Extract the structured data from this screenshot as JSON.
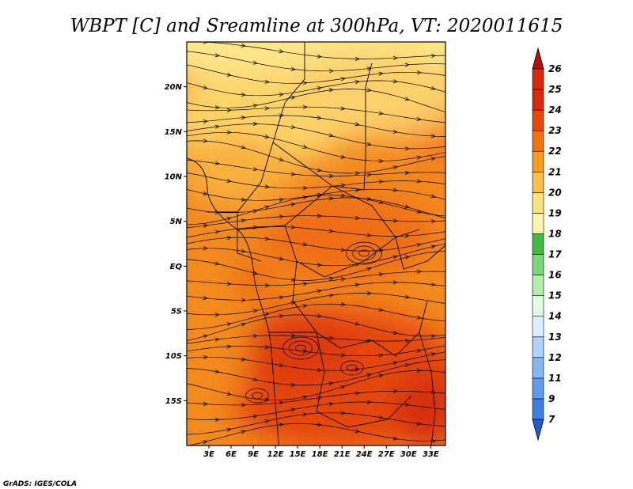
{
  "title": "WBPT [C] and Sreamline at 300hPa, VT: 2020011615",
  "credit": "GrADS: IGES/COLA",
  "map": {
    "lon_range": [
      0,
      35
    ],
    "lat_range": [
      -20,
      25
    ],
    "lon_ticks": [
      {
        "value": 3,
        "label": "3E"
      },
      {
        "value": 6,
        "label": "6E"
      },
      {
        "value": 9,
        "label": "9E"
      },
      {
        "value": 12,
        "label": "12E"
      },
      {
        "value": 15,
        "label": "15E"
      },
      {
        "value": 18,
        "label": "18E"
      },
      {
        "value": 21,
        "label": "21E"
      },
      {
        "value": 24,
        "label": "24E"
      },
      {
        "value": 27,
        "label": "27E"
      },
      {
        "value": 30,
        "label": "30E"
      },
      {
        "value": 33,
        "label": "33E"
      }
    ],
    "lat_ticks": [
      {
        "value": 20,
        "label": "20N"
      },
      {
        "value": 15,
        "label": "15N"
      },
      {
        "value": 10,
        "label": "10N"
      },
      {
        "value": 5,
        "label": "5N"
      },
      {
        "value": 0,
        "label": "EQ"
      },
      {
        "value": -5,
        "label": "5S"
      },
      {
        "value": -10,
        "label": "10S"
      },
      {
        "value": -15,
        "label": "15S"
      }
    ]
  },
  "colorbar": {
    "labels": [
      "7",
      "9",
      "11",
      "12",
      "13",
      "14",
      "15",
      "16",
      "17",
      "18",
      "19",
      "20",
      "21",
      "22",
      "23",
      "24",
      "25",
      "26"
    ],
    "colors": [
      "#1e5fd8",
      "#3b7fe6",
      "#5d9cef",
      "#86b8f4",
      "#b0d3f8",
      "#dcefff",
      "#e2ffe2",
      "#b5edaa",
      "#7ed67a",
      "#3fba3f",
      "#fff5b0",
      "#fde37c",
      "#fbbf4a",
      "#f79a22",
      "#f0730f",
      "#e64a0b",
      "#d62a0a",
      "#b80d06"
    ]
  }
}
